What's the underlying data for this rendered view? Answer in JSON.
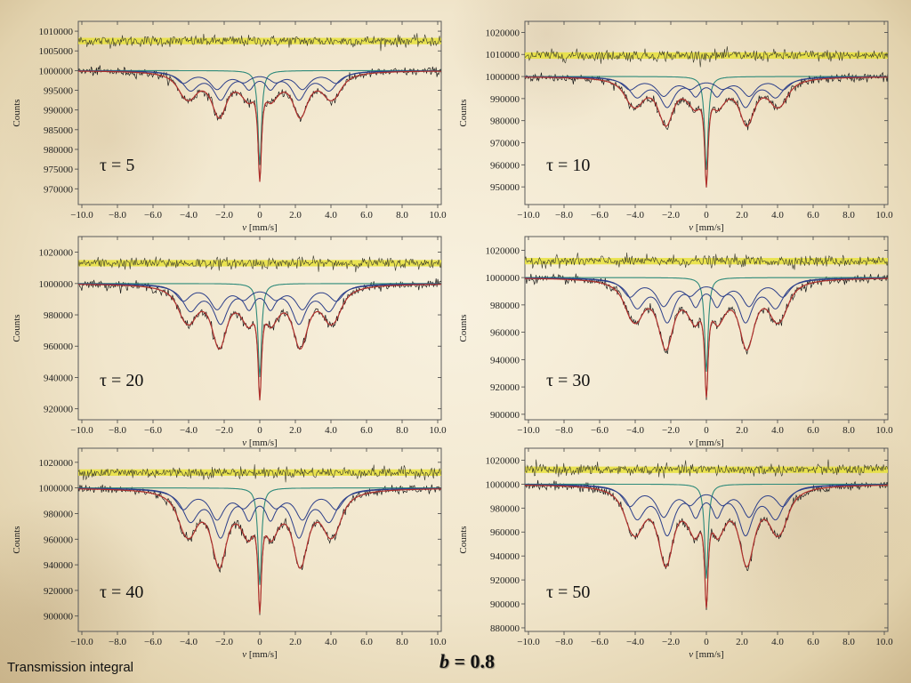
{
  "footer": {
    "left_text": "Transmission integral",
    "b_symbol": "b",
    "b_rest": " = 0.8"
  },
  "colors": {
    "data": "#1a1a1a",
    "fit": "#b0302c",
    "subspectrum": "#2c3f8a",
    "residual_band": "#e8e23a",
    "residual_data": "#3a3a2a",
    "singlet": "#2e8a7a"
  },
  "chart_data": [
    {
      "type": "line",
      "label": "τ = 5",
      "xlabel_symbol": "v",
      "xlabel_unit": "[mm/s]",
      "ylabel": "Counts",
      "xlim": [
        -10.2,
        10.2
      ],
      "ylim": [
        966000,
        1012500
      ],
      "x_ticks": [
        "−10.0",
        "−8.0",
        "−6.0",
        "−4.0",
        "−2.0",
        "0",
        "2.0",
        "4.0",
        "6.0",
        "8.0",
        "10.0"
      ],
      "y_ticks": [
        970000,
        975000,
        980000,
        985000,
        990000,
        995000,
        1000000,
        1005000,
        1010000
      ],
      "y_tick_labels": [
        "970000",
        "975000",
        "980000",
        "985000",
        "990000",
        "995000",
        "1000000",
        "1005000",
        "1010000"
      ],
      "baseline": 1000000,
      "residual_level": 1007500,
      "sextet_lines_x": [
        -3.9,
        -2.2,
        -0.6,
        0.6,
        2.2,
        3.9
      ],
      "singlet_x": 0.0,
      "minimum_at_0": 970800,
      "sextet_depth": 15000
    },
    {
      "type": "line",
      "label": "τ = 10",
      "xlabel_symbol": "v",
      "xlabel_unit": "[mm/s]",
      "ylabel": "Counts",
      "xlim": [
        -10.2,
        10.2
      ],
      "ylim": [
        942000,
        1025000
      ],
      "x_ticks": [
        "−10.0",
        "−8.0",
        "−6.0",
        "−4.0",
        "−2.0",
        "0",
        "2.0",
        "4.0",
        "6.0",
        "8.0",
        "10.0"
      ],
      "y_ticks": [
        950000,
        960000,
        970000,
        980000,
        990000,
        1000000,
        1010000,
        1020000
      ],
      "y_tick_labels": [
        "950000",
        "960000",
        "970000",
        "980000",
        "990000",
        "1000000",
        "1010000",
        "1020000"
      ],
      "baseline": 1000000,
      "residual_level": 1009500,
      "sextet_lines_x": [
        -3.9,
        -2.2,
        -0.6,
        0.6,
        2.2,
        3.9
      ],
      "singlet_x": 0.0,
      "minimum_at_0": 948000,
      "sextet_depth": 28000
    },
    {
      "type": "line",
      "label": "τ = 20",
      "xlabel_symbol": "v",
      "xlabel_unit": "[mm/s]",
      "ylabel": "Counts",
      "xlim": [
        -10.2,
        10.2
      ],
      "ylim": [
        913000,
        1030000
      ],
      "x_ticks": [
        "−10.0",
        "−8.0",
        "−6.0",
        "−4.0",
        "−2.0",
        "0",
        "2.0",
        "4.0",
        "6.0",
        "8.0",
        "10.0"
      ],
      "y_ticks": [
        920000,
        940000,
        960000,
        980000,
        1000000,
        1020000
      ],
      "y_tick_labels": [
        "920000",
        "940000",
        "960000",
        "980000",
        "1000000",
        "1020000"
      ],
      "baseline": 1000000,
      "residual_level": 1013000,
      "sextet_lines_x": [
        -3.9,
        -2.2,
        -0.6,
        0.6,
        2.2,
        3.9
      ],
      "singlet_x": 0.0,
      "minimum_at_0": 922000,
      "sextet_depth": 52000
    },
    {
      "type": "line",
      "label": "τ = 30",
      "xlabel_symbol": "v",
      "xlabel_unit": "[mm/s]",
      "ylabel": "Counts",
      "xlim": [
        -10.2,
        10.2
      ],
      "ylim": [
        896000,
        1030000
      ],
      "x_ticks": [
        "−10.0",
        "−8.0",
        "−6.0",
        "−4.0",
        "−2.0",
        "0",
        "2.0",
        "4.0",
        "6.0",
        "8.0",
        "10.0"
      ],
      "y_ticks": [
        900000,
        920000,
        940000,
        960000,
        980000,
        1000000,
        1020000
      ],
      "y_tick_labels": [
        "900000",
        "920000",
        "940000",
        "960000",
        "980000",
        "1000000",
        "1020000"
      ],
      "baseline": 1000000,
      "residual_level": 1012000,
      "sextet_lines_x": [
        -3.9,
        -2.2,
        -0.6,
        0.6,
        2.2,
        3.9
      ],
      "singlet_x": 0.0,
      "minimum_at_0": 908000,
      "sextet_depth": 66000
    },
    {
      "type": "line",
      "label": "τ = 40",
      "xlabel_symbol": "v",
      "xlabel_unit": "[mm/s]",
      "ylabel": "Counts",
      "xlim": [
        -10.2,
        10.2
      ],
      "ylim": [
        888000,
        1031000
      ],
      "x_ticks": [
        "−10.0",
        "−8.0",
        "−6.0",
        "−4.0",
        "−2.0",
        "0",
        "2.0",
        "4.0",
        "6.0",
        "8.0",
        "10.0"
      ],
      "y_ticks": [
        900000,
        920000,
        940000,
        960000,
        980000,
        1000000,
        1020000
      ],
      "y_tick_labels": [
        "900000",
        "920000",
        "940000",
        "960000",
        "980000",
        "1000000",
        "1020000"
      ],
      "baseline": 1000000,
      "residual_level": 1012000,
      "sextet_lines_x": [
        -3.9,
        -2.2,
        -0.6,
        0.6,
        2.2,
        3.9
      ],
      "singlet_x": 0.0,
      "minimum_at_0": 897000,
      "sextet_depth": 78000
    },
    {
      "type": "line",
      "label": "τ = 50",
      "xlabel_symbol": "v",
      "xlabel_unit": "[mm/s]",
      "ylabel": "Counts",
      "xlim": [
        -10.2,
        10.2
      ],
      "ylim": [
        877000,
        1030000
      ],
      "x_ticks": [
        "−10.0",
        "−8.0",
        "−6.0",
        "−4.0",
        "−2.0",
        "0",
        "2.0",
        "4.0",
        "6.0",
        "8.0",
        "10.0"
      ],
      "y_ticks": [
        880000,
        900000,
        920000,
        940000,
        960000,
        980000,
        1000000,
        1020000
      ],
      "y_tick_labels": [
        "880000",
        "900000",
        "920000",
        "940000",
        "960000",
        "980000",
        "1000000",
        "1020000"
      ],
      "baseline": 1000000,
      "residual_level": 1012000,
      "sextet_lines_x": [
        -3.9,
        -2.2,
        -0.6,
        0.6,
        2.2,
        3.9
      ],
      "singlet_x": 0.0,
      "minimum_at_0": 891000,
      "sextet_depth": 86000
    }
  ]
}
